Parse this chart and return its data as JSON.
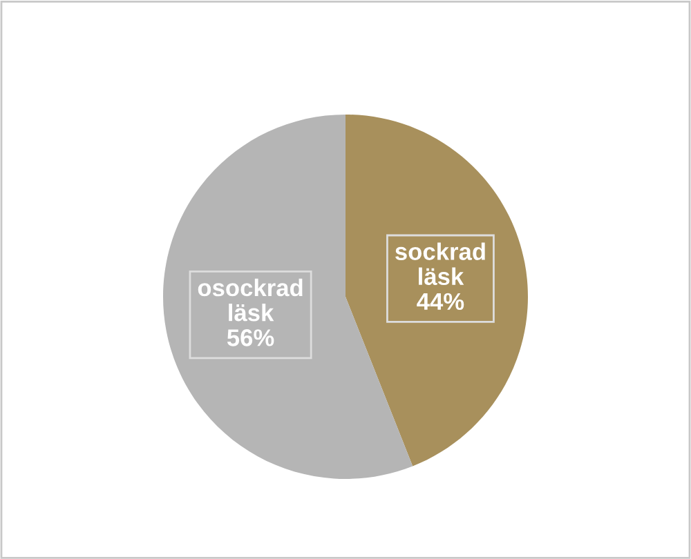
{
  "chart_data": {
    "type": "pie",
    "categories": [
      "sockrad läsk",
      "osockrad läsk"
    ],
    "values": [
      44,
      56
    ],
    "colors": [
      "#a8905c",
      "#b5b5b5"
    ],
    "value_labels": [
      "44%",
      "56%"
    ],
    "legend": false
  }
}
